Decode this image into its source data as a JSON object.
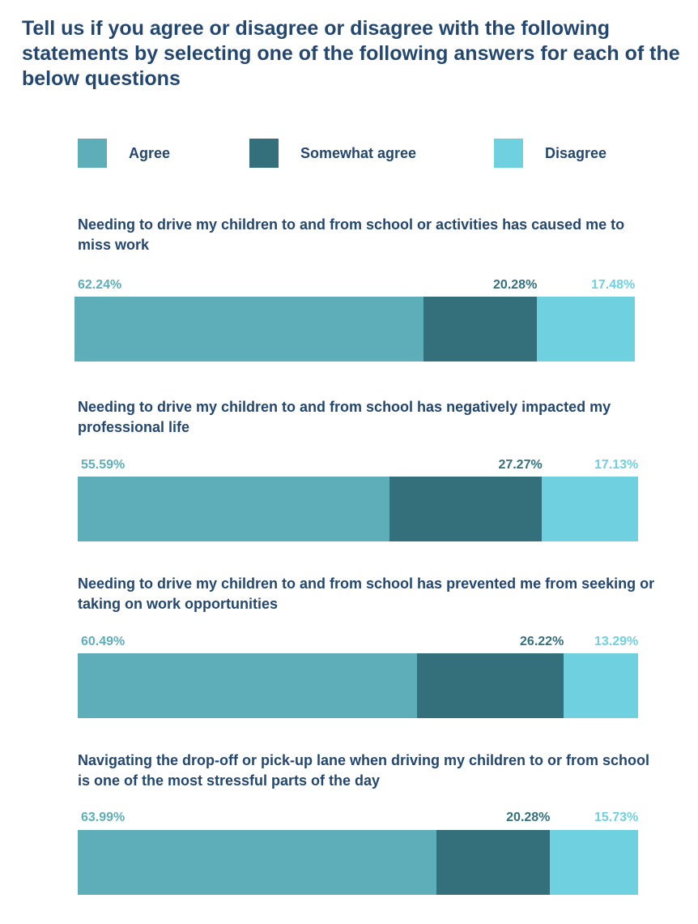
{
  "title": "Tell us if you agree or disagree or disagree with the following statements by selecting one of the following answers for each of the below questions",
  "colors": {
    "agree": "#5eaeb9",
    "somewhat_agree": "#33707c",
    "disagree": "#6fd0e0",
    "text": "#24476f"
  },
  "legend": [
    {
      "label": "Agree",
      "color": "#5eaeb9"
    },
    {
      "label": "Somewhat agree",
      "color": "#33707c"
    },
    {
      "label": "Disagree",
      "color": "#6fd0e0"
    }
  ],
  "chart_data": {
    "type": "bar",
    "stacked": true,
    "orientation": "horizontal",
    "title": "Tell us if you agree or disagree or disagree with the following statements by selecting one of the following answers for each of the below questions",
    "categories": [
      "Needing to drive my children to and from school or activities has caused me to miss work",
      "Needing to drive my children to and from school has negatively impacted my professional life",
      "Needing to drive my children to and from school has prevented me from seeking or taking on work opportunities",
      "Navigating the drop-off or pick-up lane when driving my children to or from school is one of the most stressful parts of the day"
    ],
    "series": [
      {
        "name": "Agree",
        "values": [
          62.24,
          55.59,
          60.49,
          63.99
        ],
        "labels": [
          "62.24%",
          "55.59%",
          "60.49%",
          "63.99%"
        ]
      },
      {
        "name": "Somewhat agree",
        "values": [
          20.28,
          27.27,
          26.22,
          20.28
        ],
        "labels": [
          "20.28%",
          "27.27%",
          "26.22%",
          "20.28%"
        ]
      },
      {
        "name": "Disagree",
        "values": [
          17.48,
          17.13,
          13.29,
          15.73
        ],
        "labels": [
          "17.48%",
          "17.13%",
          "13.29%",
          "15.73%"
        ]
      }
    ],
    "xlim": [
      0,
      100
    ],
    "legend_position": "top"
  }
}
